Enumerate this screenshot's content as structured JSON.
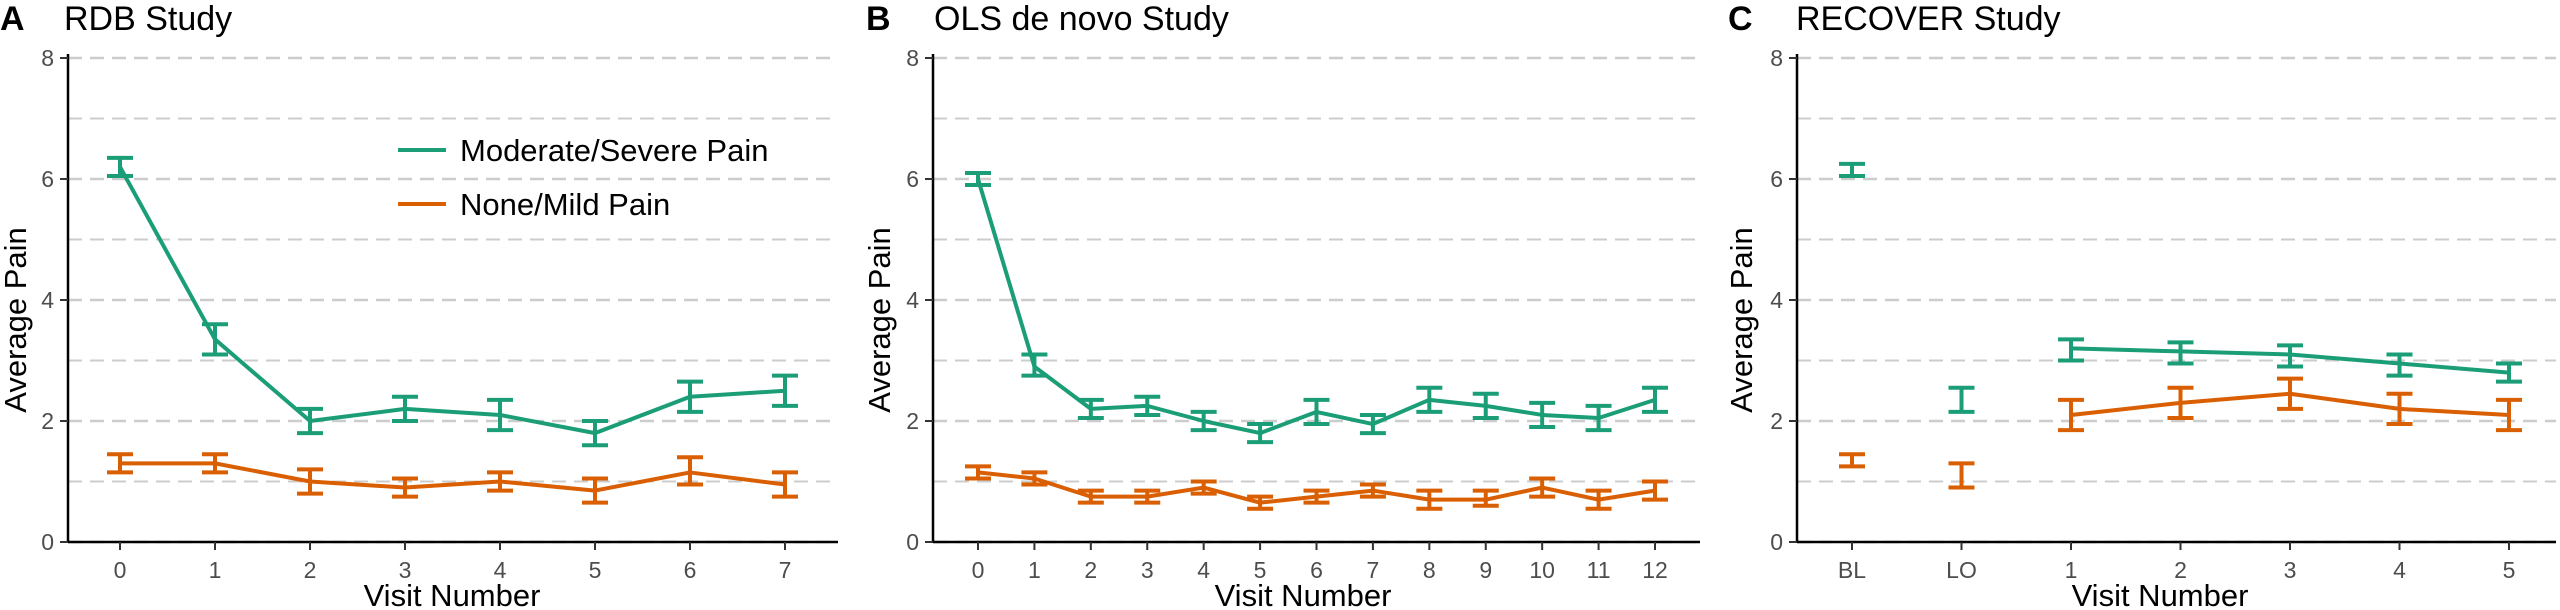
{
  "colors": {
    "moderate_severe": "#1b9e77",
    "none_mild": "#d95f02",
    "grid": "#cccccc"
  },
  "legend": {
    "entries": [
      {
        "key": "moderate_severe",
        "label": "Moderate/Severe Pain"
      },
      {
        "key": "none_mild",
        "label": "None/Mild Pain"
      }
    ]
  },
  "chart_data": [
    {
      "type": "line",
      "panel_letter": "A",
      "title": "RDB Study",
      "xlabel": "Visit Number",
      "ylabel": "Average Pain",
      "categories": [
        "0",
        "1",
        "2",
        "3",
        "4",
        "5",
        "6",
        "7"
      ],
      "ylim": [
        0,
        8
      ],
      "yticks": [
        0,
        2,
        4,
        6,
        8
      ],
      "grid": "horizontal dashed at every unit",
      "legend_placement": "top-right",
      "series": [
        {
          "key": "moderate_severe",
          "name": "Moderate/Severe Pain",
          "values": [
            6.2,
            3.35,
            2.0,
            2.2,
            2.1,
            1.8,
            2.4,
            2.5
          ],
          "lower": [
            6.05,
            3.1,
            1.8,
            2.0,
            1.85,
            1.6,
            2.15,
            2.25
          ],
          "upper": [
            6.35,
            3.6,
            2.2,
            2.4,
            2.35,
            2.0,
            2.65,
            2.75
          ],
          "connected": [
            [
              0,
              7
            ]
          ]
        },
        {
          "key": "none_mild",
          "name": "None/Mild Pain",
          "values": [
            1.3,
            1.3,
            1.0,
            0.9,
            1.0,
            0.85,
            1.15,
            0.95
          ],
          "lower": [
            1.15,
            1.15,
            0.8,
            0.75,
            0.85,
            0.65,
            0.95,
            0.75
          ],
          "upper": [
            1.45,
            1.45,
            1.2,
            1.05,
            1.15,
            1.05,
            1.4,
            1.15
          ],
          "connected": [
            [
              0,
              7
            ]
          ]
        }
      ]
    },
    {
      "type": "line",
      "panel_letter": "B",
      "title": "OLS de novo Study",
      "xlabel": "Visit Number",
      "ylabel": "Average Pain",
      "categories": [
        "0",
        "1",
        "2",
        "3",
        "4",
        "5",
        "6",
        "7",
        "8",
        "9",
        "10",
        "11",
        "12"
      ],
      "ylim": [
        0,
        8
      ],
      "yticks": [
        0,
        2,
        4,
        6,
        8
      ],
      "grid": "horizontal dashed at every unit",
      "series": [
        {
          "key": "moderate_severe",
          "name": "Moderate/Severe Pain",
          "values": [
            6.0,
            2.9,
            2.2,
            2.25,
            2.0,
            1.8,
            2.15,
            1.95,
            2.35,
            2.25,
            2.1,
            2.05,
            2.35
          ],
          "lower": [
            5.9,
            2.75,
            2.05,
            2.1,
            1.85,
            1.65,
            1.95,
            1.8,
            2.15,
            2.05,
            1.9,
            1.85,
            2.15
          ],
          "upper": [
            6.1,
            3.1,
            2.35,
            2.4,
            2.15,
            1.95,
            2.35,
            2.1,
            2.55,
            2.45,
            2.3,
            2.25,
            2.55
          ],
          "connected": [
            [
              0,
              12
            ]
          ]
        },
        {
          "key": "none_mild",
          "name": "None/Mild Pain",
          "values": [
            1.15,
            1.05,
            0.75,
            0.75,
            0.9,
            0.65,
            0.75,
            0.85,
            0.7,
            0.7,
            0.9,
            0.7,
            0.85
          ],
          "lower": [
            1.05,
            0.95,
            0.65,
            0.65,
            0.8,
            0.55,
            0.65,
            0.75,
            0.55,
            0.6,
            0.75,
            0.55,
            0.7
          ],
          "upper": [
            1.25,
            1.15,
            0.85,
            0.85,
            1.0,
            0.75,
            0.85,
            0.95,
            0.85,
            0.85,
            1.05,
            0.85,
            1.0
          ],
          "connected": [
            [
              0,
              12
            ]
          ]
        }
      ]
    },
    {
      "type": "line",
      "panel_letter": "C",
      "title": "RECOVER Study",
      "xlabel": "Visit Number",
      "ylabel": "Average Pain",
      "categories": [
        "BL",
        "LO",
        "1",
        "2",
        "3",
        "4",
        "5"
      ],
      "ylim": [
        0,
        8
      ],
      "yticks": [
        0,
        2,
        4,
        6,
        8
      ],
      "grid": "horizontal dashed at every unit",
      "series": [
        {
          "key": "moderate_severe",
          "name": "Moderate/Severe Pain",
          "values": [
            6.15,
            2.35,
            3.2,
            3.15,
            3.1,
            2.95,
            2.8
          ],
          "lower": [
            6.05,
            2.15,
            3.0,
            2.95,
            2.9,
            2.75,
            2.65
          ],
          "upper": [
            6.25,
            2.55,
            3.35,
            3.3,
            3.25,
            3.1,
            2.95
          ],
          "connected": [
            [
              2,
              6
            ]
          ]
        },
        {
          "key": "none_mild",
          "name": "None/Mild Pain",
          "values": [
            1.35,
            1.1,
            2.1,
            2.3,
            2.45,
            2.2,
            2.1
          ],
          "lower": [
            1.25,
            0.9,
            1.85,
            2.05,
            2.2,
            1.95,
            1.85
          ],
          "upper": [
            1.45,
            1.3,
            2.35,
            2.55,
            2.7,
            2.45,
            2.35
          ],
          "connected": [
            [
              2,
              6
            ]
          ]
        }
      ]
    }
  ]
}
